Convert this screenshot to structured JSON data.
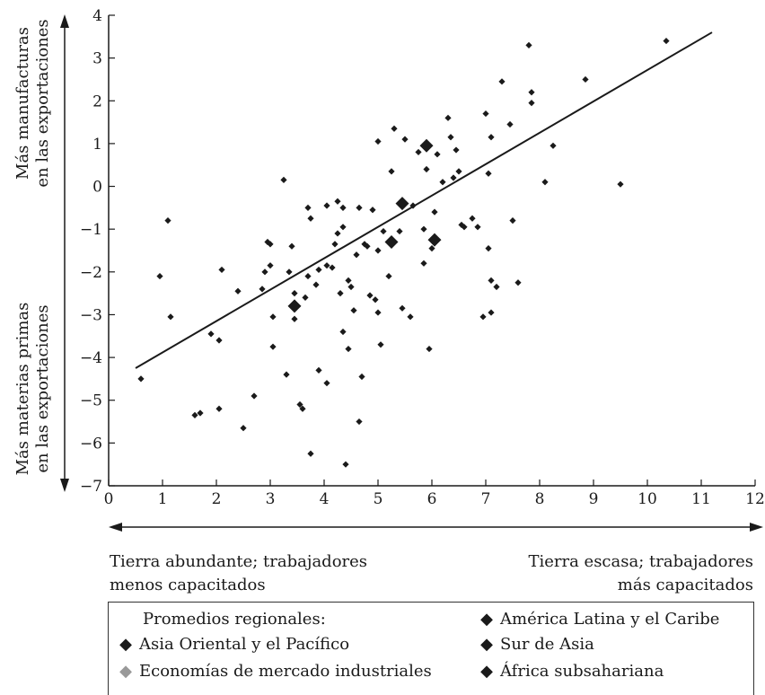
{
  "chart_data": {
    "type": "scatter",
    "title": "",
    "xlabel": "",
    "ylabel_top": [
      "Más manufacturas",
      "en las exportaciones"
    ],
    "ylabel_bottom": [
      "Más materias primas",
      "en las exportaciones"
    ],
    "xlim": [
      0,
      12
    ],
    "ylim": [
      -7,
      4
    ],
    "xticks": [
      "0",
      "1",
      "2",
      "3",
      "4",
      "5",
      "6",
      "7",
      "8",
      "9",
      "10",
      "11",
      "12"
    ],
    "yticks": [
      "4",
      "3",
      "2",
      "1",
      "0",
      "−1",
      "−2",
      "−3",
      "−4",
      "−5",
      "−6",
      "−7"
    ],
    "grid": false,
    "trend_line": {
      "x": [
        0.5,
        11.2
      ],
      "y": [
        -4.25,
        3.6
      ]
    },
    "series": [
      {
        "name": "",
        "marker": "diamond-small",
        "color": "#1a1a1a",
        "points": [
          [
            0.6,
            -4.5
          ],
          [
            0.95,
            -2.1
          ],
          [
            1.1,
            -0.8
          ],
          [
            1.15,
            -3.05
          ],
          [
            1.6,
            -5.35
          ],
          [
            1.7,
            -5.3
          ],
          [
            1.9,
            -3.45
          ],
          [
            2.05,
            -5.2
          ],
          [
            2.05,
            -3.6
          ],
          [
            2.1,
            -1.95
          ],
          [
            2.4,
            -2.45
          ],
          [
            2.5,
            -5.65
          ],
          [
            2.7,
            -4.9
          ],
          [
            2.85,
            -2.4
          ],
          [
            2.9,
            -2.0
          ],
          [
            2.95,
            -1.3
          ],
          [
            3.0,
            -1.35
          ],
          [
            3.0,
            -1.85
          ],
          [
            3.05,
            -3.05
          ],
          [
            3.05,
            -3.75
          ],
          [
            3.25,
            0.15
          ],
          [
            3.3,
            -4.4
          ],
          [
            3.35,
            -2.0
          ],
          [
            3.4,
            -1.4
          ],
          [
            3.45,
            -2.5
          ],
          [
            3.45,
            -3.1
          ],
          [
            3.55,
            -5.1
          ],
          [
            3.6,
            -5.2
          ],
          [
            3.65,
            -2.6
          ],
          [
            3.7,
            -2.1
          ],
          [
            3.7,
            -0.5
          ],
          [
            3.75,
            -0.75
          ],
          [
            3.75,
            -6.25
          ],
          [
            3.85,
            -2.3
          ],
          [
            3.9,
            -1.95
          ],
          [
            3.9,
            -4.3
          ],
          [
            4.05,
            -0.45
          ],
          [
            4.05,
            -1.85
          ],
          [
            4.05,
            -4.6
          ],
          [
            4.15,
            -1.9
          ],
          [
            4.2,
            -1.35
          ],
          [
            4.25,
            -0.35
          ],
          [
            4.25,
            -1.1
          ],
          [
            4.3,
            -2.5
          ],
          [
            4.35,
            -0.5
          ],
          [
            4.35,
            -0.95
          ],
          [
            4.35,
            -3.4
          ],
          [
            4.4,
            -6.5
          ],
          [
            4.45,
            -2.2
          ],
          [
            4.45,
            -3.8
          ],
          [
            4.5,
            -2.35
          ],
          [
            4.55,
            -2.9
          ],
          [
            4.6,
            -1.6
          ],
          [
            4.65,
            -0.5
          ],
          [
            4.65,
            -5.5
          ],
          [
            4.7,
            -4.45
          ],
          [
            4.75,
            -1.35
          ],
          [
            4.8,
            -1.4
          ],
          [
            4.85,
            -2.55
          ],
          [
            4.9,
            -0.55
          ],
          [
            4.95,
            -2.65
          ],
          [
            5.0,
            1.05
          ],
          [
            5.0,
            -1.5
          ],
          [
            5.0,
            -2.95
          ],
          [
            5.05,
            -3.7
          ],
          [
            5.1,
            -1.05
          ],
          [
            5.2,
            -2.1
          ],
          [
            5.25,
            0.35
          ],
          [
            5.3,
            1.35
          ],
          [
            5.4,
            -1.05
          ],
          [
            5.45,
            -2.85
          ],
          [
            5.5,
            1.1
          ],
          [
            5.6,
            -3.05
          ],
          [
            5.65,
            -0.45
          ],
          [
            5.75,
            0.8
          ],
          [
            5.85,
            -1.0
          ],
          [
            5.85,
            -1.8
          ],
          [
            5.9,
            0.4
          ],
          [
            5.95,
            -3.8
          ],
          [
            6.0,
            -1.45
          ],
          [
            6.05,
            -0.6
          ],
          [
            6.1,
            0.75
          ],
          [
            6.2,
            0.1
          ],
          [
            6.3,
            1.6
          ],
          [
            6.35,
            1.15
          ],
          [
            6.4,
            0.2
          ],
          [
            6.45,
            0.85
          ],
          [
            6.5,
            0.35
          ],
          [
            6.55,
            -0.9
          ],
          [
            6.6,
            -0.95
          ],
          [
            6.75,
            -0.75
          ],
          [
            6.85,
            -0.95
          ],
          [
            6.95,
            -3.05
          ],
          [
            7.0,
            1.7
          ],
          [
            7.05,
            -1.45
          ],
          [
            7.05,
            0.3
          ],
          [
            7.1,
            1.15
          ],
          [
            7.1,
            -2.2
          ],
          [
            7.1,
            -2.95
          ],
          [
            7.2,
            -2.35
          ],
          [
            7.3,
            2.45
          ],
          [
            7.45,
            1.45
          ],
          [
            7.5,
            -0.8
          ],
          [
            7.6,
            -2.25
          ],
          [
            7.8,
            3.3
          ],
          [
            7.85,
            2.2
          ],
          [
            7.85,
            1.95
          ],
          [
            8.1,
            0.1
          ],
          [
            8.25,
            0.95
          ],
          [
            8.85,
            2.5
          ],
          [
            9.5,
            0.05
          ],
          [
            10.35,
            3.4
          ]
        ]
      },
      {
        "name": "Promedios regionales",
        "marker": "diamond-large",
        "color": "#1a1a1a",
        "points": [
          [
            3.45,
            -2.8
          ],
          [
            5.25,
            -1.3
          ],
          [
            5.45,
            -0.4
          ],
          [
            5.9,
            0.95
          ],
          [
            6.05,
            -1.25
          ]
        ]
      }
    ]
  },
  "x_notes": {
    "left": [
      "Tierra abundante; trabajadores",
      "menos capacitados"
    ],
    "right": [
      "Tierra escasa; trabajadores",
      "más capacitados"
    ]
  },
  "legend": {
    "title": "Promedios regionales:",
    "items": [
      {
        "label": "Asia Oriental y el Pacífico",
        "color": "#1a1a1a",
        "marker": "◆"
      },
      {
        "label": "Economías de mercado industriales",
        "color": "#999999",
        "marker": "◆"
      },
      {
        "label": "América Latina y el Caribe",
        "color": "#1a1a1a",
        "marker": "◆"
      },
      {
        "label": "Sur de Asia",
        "color": "#1a1a1a",
        "marker": "◆"
      },
      {
        "label": "África subsahariana",
        "color": "#1a1a1a",
        "marker": "◆"
      }
    ]
  }
}
